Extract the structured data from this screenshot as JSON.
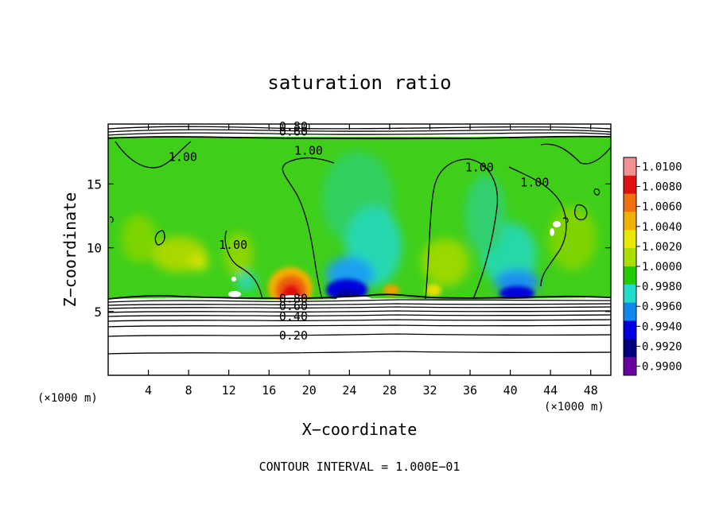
{
  "chart_data": {
    "type": "heatmap",
    "title": "saturation ratio",
    "xlabel": "X−coordinate",
    "ylabel": "Z−coordinate",
    "x_unit_left": "(×1000 m)",
    "x_unit_right": "(×1000 m)",
    "xlim": [
      0,
      50
    ],
    "ylim": [
      0,
      19.7
    ],
    "x_ticks": [
      4,
      8,
      12,
      16,
      20,
      24,
      28,
      32,
      36,
      40,
      44,
      48
    ],
    "y_ticks": [
      5,
      10,
      15
    ],
    "footer": "CONTOUR INTERVAL = 1.000E−01",
    "contour_labels": [
      {
        "text": "1.00",
        "x": 6.0,
        "y": 16.8
      },
      {
        "text": "1.00",
        "x": 18.5,
        "y": 17.3
      },
      {
        "text": "1.00",
        "x": 35.5,
        "y": 16.0
      },
      {
        "text": "1.00",
        "x": 41.0,
        "y": 14.8
      },
      {
        "text": "1.00",
        "x": 11.0,
        "y": 9.9
      },
      {
        "text": "0.80",
        "x": 17.0,
        "y": 5.7
      },
      {
        "text": "0.60",
        "x": 17.0,
        "y": 5.1
      },
      {
        "text": "0.40",
        "x": 17.0,
        "y": 4.3
      },
      {
        "text": "0.20",
        "x": 17.0,
        "y": 2.8
      },
      {
        "text": "0.80",
        "x": 17.0,
        "y": 19.2
      },
      {
        "text": "0.60",
        "x": 17.0,
        "y": 18.8
      }
    ],
    "colorbar": {
      "labels": [
        "1.0100",
        "1.0080",
        "1.0060",
        "1.0040",
        "1.0020",
        "1.0000",
        "0.9980",
        "0.9960",
        "0.9940",
        "0.9920",
        "0.9900"
      ],
      "colors": [
        "#f39090",
        "#e01010",
        "#f07010",
        "#f0b000",
        "#e8e800",
        "#aadd00",
        "#22cc00",
        "#22ddcc",
        "#1188ee",
        "#0000dd",
        "#000080",
        "#6a00a0"
      ]
    }
  }
}
